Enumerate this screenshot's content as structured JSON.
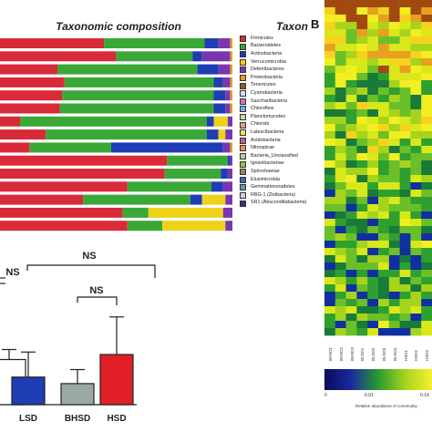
{
  "panel_label": "B",
  "left_title": "Taxonomic composition",
  "right_title": "Taxon",
  "legend": [
    {
      "label": "Firmicutes",
      "color": "#d92a3a"
    },
    {
      "label": "Bacteroidetes",
      "color": "#3aa836"
    },
    {
      "label": "Actinobacteria",
      "color": "#1f3db5"
    },
    {
      "label": "Verrucomicrobia",
      "color": "#eed21a"
    },
    {
      "label": "Deferribacteres",
      "color": "#7a36b0"
    },
    {
      "label": "Proteobacteria",
      "color": "#e89a2a"
    },
    {
      "label": "Tenericutes",
      "color": "#8a5a2b"
    },
    {
      "label": "Cyanobacteria",
      "color": "#e0e0e0"
    },
    {
      "label": "Saccharibacteria",
      "color": "#d26ad0"
    },
    {
      "label": "Chloroflexi",
      "color": "#6ab0e0"
    },
    {
      "label": "Planctomycetes",
      "color": "#cfd6a0"
    },
    {
      "label": "Chlorobi",
      "color": "#e0a080"
    },
    {
      "label": "Latescibacteria",
      "color": "#f0e060"
    },
    {
      "label": "Acidobacteria",
      "color": "#b060a0"
    },
    {
      "label": "Nitrospirae",
      "color": "#f09050"
    },
    {
      "label": "Bacteria_Unclassified",
      "color": "#c0c0c0"
    },
    {
      "label": "Ignavibacteriae",
      "color": "#90c040"
    },
    {
      "label": "Spirochaetae",
      "color": "#a08060"
    },
    {
      "label": "Elusimicrobia",
      "color": "#5060a0"
    },
    {
      "label": "Gemmatimonadetes",
      "color": "#60a0a0"
    },
    {
      "label": "RBG-1 (Zixibacteria)",
      "color": "#d0d0f0"
    },
    {
      "label": "SR1 (Absconditabacteria)",
      "color": "#303090"
    }
  ],
  "chart_data": [
    {
      "type": "bar",
      "orientation": "horizontal",
      "stacked": true,
      "title": "Taxonomic composition",
      "xlim": [
        0,
        1
      ],
      "series_colors": {
        "Firmicutes": "#d92a3a",
        "Bacteroidetes": "#3aa836",
        "Actinobacteria": "#1f3db5",
        "Verrucomicrobia": "#eed21a",
        "Deferribacteres": "#7a36b0",
        "Proteobacteria": "#e89a2a"
      },
      "rows": [
        {
          "Firmicutes": 0.45,
          "Bacteroidetes": 0.43,
          "Actinobacteria": 0.06,
          "Deferribacteres": 0.05,
          "Proteobacteria": 0.01
        },
        {
          "Firmicutes": 0.5,
          "Bacteroidetes": 0.33,
          "Actinobacteria": 0.04,
          "Deferribacteres": 0.12,
          "Proteobacteria": 0.01
        },
        {
          "Firmicutes": 0.25,
          "Bacteroidetes": 0.6,
          "Actinobacteria": 0.09,
          "Deferribacteres": 0.05,
          "Proteobacteria": 0.01
        },
        {
          "Firmicutes": 0.28,
          "Bacteroidetes": 0.64,
          "Actinobacteria": 0.04,
          "Deferribacteres": 0.03,
          "Proteobacteria": 0.01
        },
        {
          "Firmicutes": 0.27,
          "Bacteroidetes": 0.65,
          "Actinobacteria": 0.05,
          "Deferribacteres": 0.02,
          "Proteobacteria": 0.01
        },
        {
          "Firmicutes": 0.26,
          "Bacteroidetes": 0.66,
          "Actinobacteria": 0.05,
          "Deferribacteres": 0.02,
          "Proteobacteria": 0.01
        },
        {
          "Firmicutes": 0.09,
          "Bacteroidetes": 0.8,
          "Verrucomicrobia": 0.06,
          "Actinobacteria": 0.03,
          "Deferribacteres": 0.02
        },
        {
          "Firmicutes": 0.2,
          "Bacteroidetes": 0.69,
          "Actinobacteria": 0.05,
          "Verrucomicrobia": 0.03,
          "Deferribacteres": 0.03
        },
        {
          "Firmicutes": 0.13,
          "Bacteroidetes": 0.35,
          "Actinobacteria": 0.48,
          "Deferribacteres": 0.03,
          "Proteobacteria": 0.01
        },
        {
          "Firmicutes": 0.72,
          "Bacteroidetes": 0.26,
          "Actinobacteria": 0.01,
          "Deferribacteres": 0.01
        },
        {
          "Firmicutes": 0.71,
          "Bacteroidetes": 0.24,
          "Actinobacteria": 0.03,
          "Deferribacteres": 0.02
        },
        {
          "Firmicutes": 0.55,
          "Bacteroidetes": 0.36,
          "Actinobacteria": 0.05,
          "Deferribacteres": 0.04
        },
        {
          "Firmicutes": 0.36,
          "Bacteroidetes": 0.46,
          "Verrucomicrobia": 0.1,
          "Actinobacteria": 0.05,
          "Deferribacteres": 0.03
        },
        {
          "Firmicutes": 0.53,
          "Bacteroidetes": 0.11,
          "Verrucomicrobia": 0.32,
          "Deferribacteres": 0.04
        },
        {
          "Firmicutes": 0.55,
          "Bacteroidetes": 0.15,
          "Verrucomicrobia": 0.27,
          "Deferribacteres": 0.03
        }
      ]
    },
    {
      "type": "bar",
      "categories": [
        "",
        "LSD",
        "BHSD",
        "HSD"
      ],
      "values": [
        0.9,
        0.55,
        0.42,
        1.0
      ],
      "errors": [
        0.2,
        0.5,
        0.28,
        0.75
      ],
      "colors": [
        "#ffffff",
        "#1f3db5",
        "#9aa9a5",
        "#e01f26"
      ],
      "ylim": [
        0,
        2.2
      ],
      "annotations": [
        "NS",
        "NS",
        "NS"
      ]
    },
    {
      "type": "heatmap",
      "title": "Taxon",
      "columns": [
        "BHSD1",
        "BHSD2",
        "BHSD3",
        "BLSD1",
        "BLSD2",
        "BLSD3",
        "BLSD4",
        "HSD1",
        "HSD2",
        "HSD3"
      ],
      "colorbar_ticks": [
        "0",
        "0.01",
        "0.14"
      ],
      "colorbar_label": "Relative abundance of community"
    }
  ]
}
